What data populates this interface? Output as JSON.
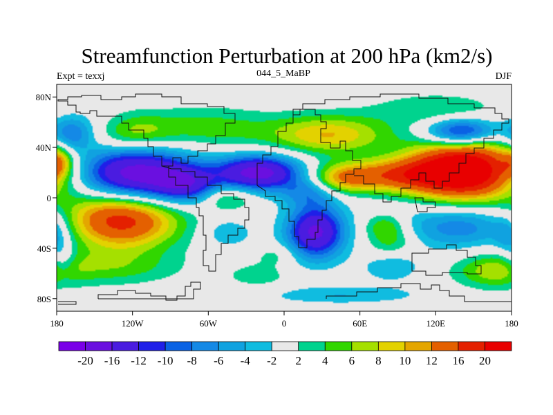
{
  "chart_data": {
    "type": "contour_map",
    "title": "Streamfunction Perturbation at 200 hPa (km2/s)",
    "left_label": "Expt = texxj",
    "center_label": "044_5_MaBP",
    "right_label": "DJF",
    "x_tick_labels": [
      "180",
      "120W",
      "60W",
      "0",
      "60E",
      "120E",
      "180"
    ],
    "x_tick_values": [
      -180,
      -120,
      -60,
      0,
      60,
      120,
      180
    ],
    "y_tick_labels": [
      "80N",
      "40N",
      "0",
      "40S",
      "80S"
    ],
    "y_tick_values": [
      80,
      40,
      0,
      -40,
      -80
    ],
    "xlim": [
      -180,
      180
    ],
    "ylim": [
      -90,
      90
    ],
    "colorbar_labels": [
      "-20",
      "-16",
      "-12",
      "-10",
      "-8",
      "-6",
      "-4",
      "-2",
      "2",
      "4",
      "6",
      "8",
      "10",
      "12",
      "16",
      "20"
    ],
    "colorbar_levels": [
      -20,
      -16,
      -12,
      -10,
      -8,
      -6,
      -4,
      -2,
      2,
      4,
      6,
      8,
      10,
      12,
      16,
      20
    ],
    "colorbar_colors": [
      "#7a00e8",
      "#6a10e0",
      "#4a1ce0",
      "#1f1fe8",
      "#0a62e4",
      "#1489e6",
      "#10a2e0",
      "#10bce0",
      "#e8e8e8",
      "#00d38e",
      "#31d600",
      "#a5e000",
      "#e3d200",
      "#e4a600",
      "#e46000",
      "#e42000",
      "#e80000"
    ],
    "field_centers": [
      {
        "lon": -118,
        "lat": 18,
        "value": -19,
        "sx": 33,
        "sy": 16
      },
      {
        "lon": -78,
        "lat": 10,
        "value": -10,
        "sx": 18,
        "sy": 10
      },
      {
        "lon": -20,
        "lat": 20,
        "value": -18,
        "sx": 24,
        "sy": 10
      },
      {
        "lon": 25,
        "lat": -27,
        "value": -17,
        "sx": 16,
        "sy": 15
      },
      {
        "lon": 140,
        "lat": 52,
        "value": -15,
        "sx": 20,
        "sy": 8
      },
      {
        "lon": 142,
        "lat": -22,
        "value": -8,
        "sx": 36,
        "sy": 13
      },
      {
        "lon": -168,
        "lat": 50,
        "value": -8,
        "sx": 12,
        "sy": 10
      },
      {
        "lon": -175,
        "lat": -50,
        "value": -4,
        "sx": 7,
        "sy": 10
      },
      {
        "lon": -140,
        "lat": 58,
        "value": -2,
        "sx": 26,
        "sy": 10
      },
      {
        "lon": -45,
        "lat": -28,
        "value": -4,
        "sx": 14,
        "sy": 8
      },
      {
        "lon": 85,
        "lat": -55,
        "value": -4,
        "sx": 16,
        "sy": 8
      },
      {
        "lon": 45,
        "lat": -77,
        "value": -4,
        "sx": 45,
        "sy": 5
      },
      {
        "lon": 178,
        "lat": -30,
        "value": -5,
        "sx": 8,
        "sy": 12
      },
      {
        "lon": 20,
        "lat": 5,
        "value": -6,
        "sx": 15,
        "sy": 8
      },
      {
        "lon": -130,
        "lat": -17,
        "value": 19,
        "sx": 32,
        "sy": 16
      },
      {
        "lon": -140,
        "lat": -55,
        "value": 5,
        "sx": 40,
        "sy": 10
      },
      {
        "lon": 143,
        "lat": 22,
        "value": 26,
        "sx": 30,
        "sy": 17
      },
      {
        "lon": 90,
        "lat": 18,
        "value": 13,
        "sx": 32,
        "sy": 9
      },
      {
        "lon": 45,
        "lat": 15,
        "value": 9,
        "sx": 18,
        "sy": 8
      },
      {
        "lon": 35,
        "lat": 50,
        "value": 10,
        "sx": 34,
        "sy": 11
      },
      {
        "lon": -120,
        "lat": 52,
        "value": 8,
        "sx": 22,
        "sy": 11
      },
      {
        "lon": -60,
        "lat": 55,
        "value": 5,
        "sx": 35,
        "sy": 12
      },
      {
        "lon": -178,
        "lat": 28,
        "value": 7,
        "sx": 7,
        "sy": 8
      },
      {
        "lon": -45,
        "lat": 0,
        "value": 6,
        "sx": 14,
        "sy": 7
      },
      {
        "lon": 165,
        "lat": -58,
        "value": 6,
        "sx": 22,
        "sy": 10
      },
      {
        "lon": 85,
        "lat": -35,
        "value": 5,
        "sx": 14,
        "sy": 8
      },
      {
        "lon": -5,
        "lat": -45,
        "value": 3,
        "sx": 12,
        "sy": 6
      },
      {
        "lon": -20,
        "lat": -62,
        "value": 3,
        "sx": 20,
        "sy": 8
      },
      {
        "lon": 120,
        "lat": 70,
        "value": 4,
        "sx": 35,
        "sy": 9
      },
      {
        "lon": 80,
        "lat": -22,
        "value": 6,
        "sx": 12,
        "sy": 7
      }
    ]
  }
}
